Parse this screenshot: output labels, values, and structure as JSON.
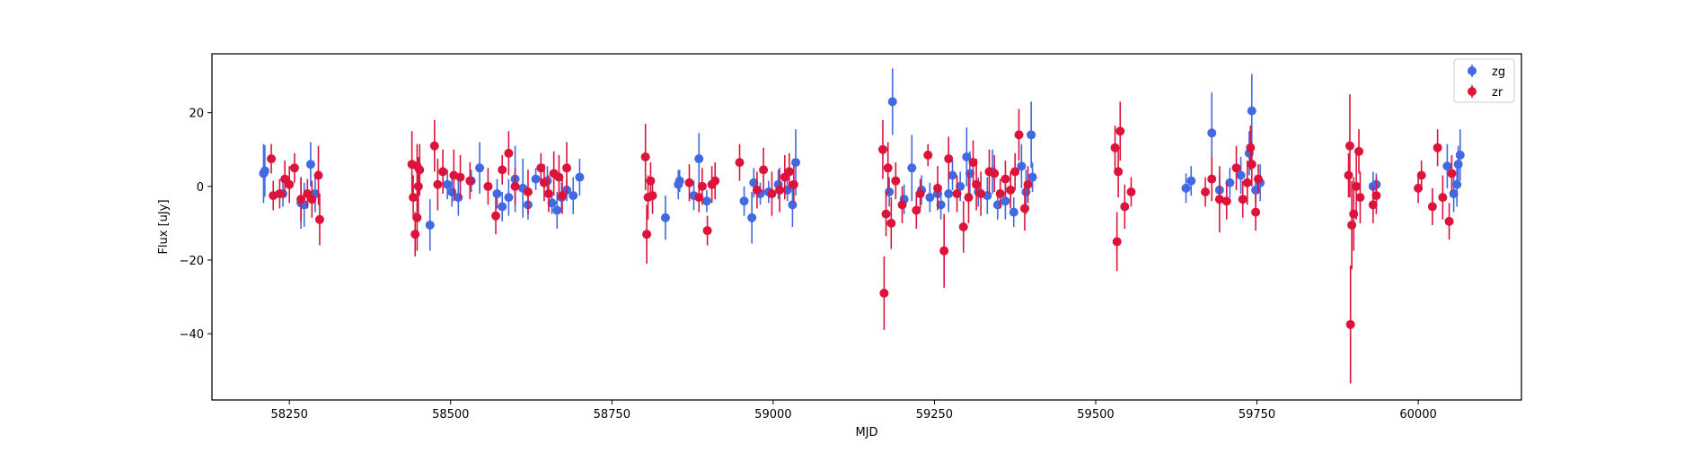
{
  "chart_data": {
    "type": "scatter",
    "title": "",
    "xlabel": "MJD",
    "ylabel": "Flux [uJy]",
    "xlim": [
      58130,
      60160
    ],
    "ylim": [
      -58,
      36
    ],
    "x_ticks": [
      58250,
      58500,
      58750,
      59000,
      59250,
      59500,
      59750,
      60000
    ],
    "x_tick_labels": [
      "58250",
      "58500",
      "58750",
      "59000",
      "59250",
      "59500",
      "59750",
      "60000"
    ],
    "y_ticks": [
      -40,
      -20,
      0,
      20
    ],
    "y_tick_labels": [
      "−40",
      "−20",
      "0",
      "20"
    ],
    "grid": false,
    "legend_position": "top-right",
    "series": [
      {
        "name": "zg",
        "color": "#4169e1",
        "points": [
          [
            58210,
            3.5,
            8
          ],
          [
            58212,
            4.2,
            7
          ],
          [
            58240,
            -2.0,
            3.5
          ],
          [
            58268,
            -4.5,
            7
          ],
          [
            58273,
            -5.0,
            6
          ],
          [
            58283,
            6.0,
            6
          ],
          [
            58290,
            -2.0,
            5
          ],
          [
            58468,
            -10.5,
            7
          ],
          [
            58495,
            0.5,
            4
          ],
          [
            58502,
            -1.5,
            4
          ],
          [
            58512,
            -3.0,
            5
          ],
          [
            58532,
            1.5,
            3
          ],
          [
            58545,
            5.0,
            7
          ],
          [
            58572,
            -2.0,
            4
          ],
          [
            58580,
            -5.5,
            4
          ],
          [
            58590,
            -3.0,
            5
          ],
          [
            58600,
            2.0,
            9
          ],
          [
            58612,
            -0.5,
            8
          ],
          [
            58620,
            -5.0,
            4
          ],
          [
            58632,
            2.0,
            3
          ],
          [
            58650,
            1.5,
            4
          ],
          [
            58657,
            -4.5,
            3
          ],
          [
            58665,
            -6.5,
            5
          ],
          [
            58672,
            -3.0,
            4
          ],
          [
            58680,
            -1.0,
            3
          ],
          [
            58690,
            -2.5,
            5
          ],
          [
            58700,
            2.5,
            5
          ],
          [
            58833,
            -8.5,
            6
          ],
          [
            58853,
            0.5,
            4
          ],
          [
            58855,
            1.5,
            3
          ],
          [
            58877,
            -2.5,
            4
          ],
          [
            58885,
            7.5,
            7
          ],
          [
            58897,
            -4.0,
            3
          ],
          [
            58955,
            -4.0,
            4
          ],
          [
            58967,
            -8.5,
            7
          ],
          [
            58970,
            1.0,
            4
          ],
          [
            58980,
            -2.0,
            3
          ],
          [
            58993,
            -1.5,
            3
          ],
          [
            59008,
            0.5,
            4
          ],
          [
            59022,
            -1.0,
            3
          ],
          [
            59030,
            -5.0,
            6
          ],
          [
            59035,
            6.5,
            9
          ],
          [
            59180,
            -1.5,
            4
          ],
          [
            59185,
            23.0,
            9
          ],
          [
            59203,
            -3.5,
            4
          ],
          [
            59215,
            5.0,
            9
          ],
          [
            59230,
            -1.0,
            4
          ],
          [
            59243,
            -3.0,
            4
          ],
          [
            59255,
            -2.0,
            3
          ],
          [
            59260,
            -5.0,
            4
          ],
          [
            59272,
            -2.0,
            5
          ],
          [
            59278,
            3.0,
            4
          ],
          [
            59290,
            0.0,
            4
          ],
          [
            59300,
            8.0,
            8
          ],
          [
            59305,
            3.5,
            6
          ],
          [
            59318,
            -1.5,
            4
          ],
          [
            59332,
            -2.5,
            5
          ],
          [
            59340,
            4.0,
            6
          ],
          [
            59348,
            -5.0,
            4
          ],
          [
            59360,
            -4.0,
            5
          ],
          [
            59373,
            -7.0,
            4
          ],
          [
            59385,
            5.5,
            6
          ],
          [
            59392,
            -1.5,
            6
          ],
          [
            59400,
            14.0,
            9
          ],
          [
            59402,
            2.5,
            4
          ],
          [
            59640,
            -0.5,
            4
          ],
          [
            59648,
            1.5,
            4
          ],
          [
            59680,
            14.5,
            11
          ],
          [
            59692,
            -1.0,
            4
          ],
          [
            59708,
            1.0,
            4
          ],
          [
            59725,
            3.0,
            5
          ],
          [
            59738,
            9.0,
            6
          ],
          [
            59742,
            20.5,
            10
          ],
          [
            59748,
            -1.0,
            4
          ],
          [
            59755,
            1.0,
            5
          ],
          [
            59930,
            0.0,
            4
          ],
          [
            59935,
            0.5,
            3
          ],
          [
            60045,
            5.5,
            6
          ],
          [
            60055,
            -2.0,
            5
          ],
          [
            60060,
            0.5,
            6
          ],
          [
            60062,
            6.0,
            5
          ],
          [
            60065,
            8.5,
            7
          ]
        ]
      },
      {
        "name": "zr",
        "color": "#dc143c",
        "points": [
          [
            58222,
            7.5,
            4
          ],
          [
            58225,
            -2.5,
            4
          ],
          [
            58235,
            -2.0,
            4
          ],
          [
            58243,
            2.0,
            5
          ],
          [
            58250,
            0.5,
            5
          ],
          [
            58258,
            5.0,
            4
          ],
          [
            58268,
            -3.5,
            6
          ],
          [
            58278,
            -2.0,
            4
          ],
          [
            58285,
            -3.5,
            5
          ],
          [
            58295,
            3.0,
            8
          ],
          [
            58297,
            -9.0,
            7
          ],
          [
            58440,
            6.0,
            9
          ],
          [
            58442,
            -3.0,
            6
          ],
          [
            58445,
            -13.0,
            6
          ],
          [
            58448,
            5.5,
            6
          ],
          [
            58448,
            -8.5,
            9
          ],
          [
            58450,
            0.0,
            8
          ],
          [
            58452,
            4.5,
            7
          ],
          [
            58475,
            11.0,
            7
          ],
          [
            58480,
            0.5,
            7
          ],
          [
            58488,
            4.0,
            6
          ],
          [
            58505,
            3.0,
            7
          ],
          [
            58515,
            2.5,
            6
          ],
          [
            58530,
            1.5,
            5
          ],
          [
            58558,
            0.0,
            5
          ],
          [
            58570,
            -8.0,
            5
          ],
          [
            58580,
            4.5,
            4
          ],
          [
            58590,
            9.0,
            6
          ],
          [
            58600,
            0.0,
            5
          ],
          [
            58620,
            -1.5,
            6
          ],
          [
            58640,
            5.0,
            4
          ],
          [
            58645,
            1.0,
            5
          ],
          [
            58652,
            -2.0,
            5
          ],
          [
            58660,
            3.5,
            6
          ],
          [
            58668,
            2.5,
            6
          ],
          [
            58673,
            -2.5,
            5
          ],
          [
            58680,
            5.0,
            7
          ],
          [
            58802,
            8.0,
            9
          ],
          [
            58804,
            -13.0,
            8
          ],
          [
            58806,
            -3.0,
            6
          ],
          [
            58810,
            1.5,
            5
          ],
          [
            58813,
            -2.5,
            5
          ],
          [
            58870,
            1.0,
            5
          ],
          [
            58885,
            -3.0,
            4
          ],
          [
            58890,
            0.0,
            5
          ],
          [
            58898,
            -12.0,
            4
          ],
          [
            58905,
            0.5,
            5
          ],
          [
            58910,
            1.5,
            5
          ],
          [
            58948,
            6.5,
            5
          ],
          [
            58975,
            -1.0,
            5
          ],
          [
            58985,
            4.5,
            6
          ],
          [
            58998,
            -2.0,
            6
          ],
          [
            59010,
            -1.0,
            6
          ],
          [
            59018,
            2.5,
            6
          ],
          [
            59025,
            4.0,
            5
          ],
          [
            59032,
            0.5,
            5
          ],
          [
            59170,
            10.0,
            8
          ],
          [
            59172,
            -29.0,
            10
          ],
          [
            59175,
            -7.5,
            6
          ],
          [
            59178,
            5.0,
            7
          ],
          [
            59183,
            -10.0,
            7
          ],
          [
            59190,
            1.5,
            5
          ],
          [
            59200,
            -5.0,
            5
          ],
          [
            59222,
            -6.5,
            5
          ],
          [
            59228,
            -2.0,
            4
          ],
          [
            59240,
            8.5,
            3
          ],
          [
            59255,
            -0.5,
            6
          ],
          [
            59265,
            -17.5,
            10
          ],
          [
            59272,
            7.5,
            6
          ],
          [
            59285,
            -2.0,
            5
          ],
          [
            59295,
            -11.0,
            7
          ],
          [
            59303,
            -3.0,
            7
          ],
          [
            59310,
            6.5,
            6
          ],
          [
            59315,
            0.5,
            7
          ],
          [
            59322,
            -2.0,
            6
          ],
          [
            59335,
            4.0,
            6
          ],
          [
            59343,
            3.5,
            5
          ],
          [
            59352,
            -2.0,
            4
          ],
          [
            59360,
            2.0,
            5
          ],
          [
            59368,
            -1.0,
            5
          ],
          [
            59375,
            4.0,
            5
          ],
          [
            59381,
            14.0,
            7
          ],
          [
            59390,
            -6.0,
            6
          ],
          [
            59395,
            0.5,
            5
          ],
          [
            59530,
            10.5,
            6
          ],
          [
            59533,
            -15.0,
            8
          ],
          [
            59535,
            4.0,
            7
          ],
          [
            59538,
            15.0,
            8
          ],
          [
            59545,
            -5.5,
            6
          ],
          [
            59555,
            -1.5,
            4
          ],
          [
            59670,
            -1.5,
            4
          ],
          [
            59680,
            2.0,
            6
          ],
          [
            59692,
            -3.5,
            9
          ],
          [
            59703,
            -4.0,
            5
          ],
          [
            59718,
            5.0,
            6
          ],
          [
            59728,
            -3.5,
            5
          ],
          [
            59735,
            1.0,
            6
          ],
          [
            59740,
            10.5,
            6
          ],
          [
            59742,
            6.0,
            6
          ],
          [
            59748,
            -7.0,
            5
          ],
          [
            59752,
            2.0,
            4
          ],
          [
            59892,
            3.0,
            6
          ],
          [
            59894,
            11.0,
            14
          ],
          [
            59895,
            -37.5,
            16
          ],
          [
            59897,
            -10.5,
            12
          ],
          [
            59900,
            -7.5,
            10
          ],
          [
            59904,
            0.0,
            9
          ],
          [
            59908,
            9.5,
            6
          ],
          [
            59910,
            -3.0,
            7
          ],
          [
            59930,
            -5.0,
            5
          ],
          [
            59935,
            -2.5,
            5
          ],
          [
            60000,
            -0.5,
            4
          ],
          [
            60005,
            3.0,
            4
          ],
          [
            60022,
            -5.5,
            5
          ],
          [
            60030,
            10.5,
            5
          ],
          [
            60038,
            -3.0,
            6
          ],
          [
            60048,
            -9.5,
            5
          ],
          [
            60052,
            3.5,
            5
          ]
        ]
      }
    ]
  }
}
